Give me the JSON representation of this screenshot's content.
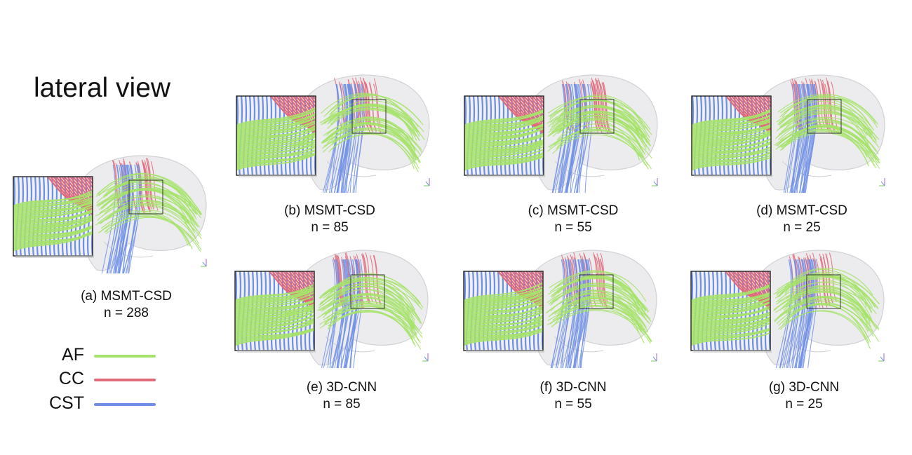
{
  "figure": {
    "title": "lateral view",
    "panels": [
      {
        "id": "a",
        "method": "(a) MSMT-CSD",
        "n": "n = 288"
      },
      {
        "id": "b",
        "method": "(b) MSMT-CSD",
        "n": "n = 85"
      },
      {
        "id": "c",
        "method": "(c) MSMT-CSD",
        "n": "n = 55"
      },
      {
        "id": "d",
        "method": "(d) MSMT-CSD",
        "n": "n = 25"
      },
      {
        "id": "e",
        "method": "(e) 3D-CNN",
        "n": "n = 85"
      },
      {
        "id": "f",
        "method": "(f) 3D-CNN",
        "n": "n = 55"
      },
      {
        "id": "g",
        "method": "(g) 3D-CNN",
        "n": "n = 25"
      }
    ],
    "legend": [
      {
        "label": "AF",
        "color": "#a6e36a"
      },
      {
        "label": "CC",
        "color": "#e06a7a"
      },
      {
        "label": "CST",
        "color": "#6e8fe6"
      }
    ]
  }
}
